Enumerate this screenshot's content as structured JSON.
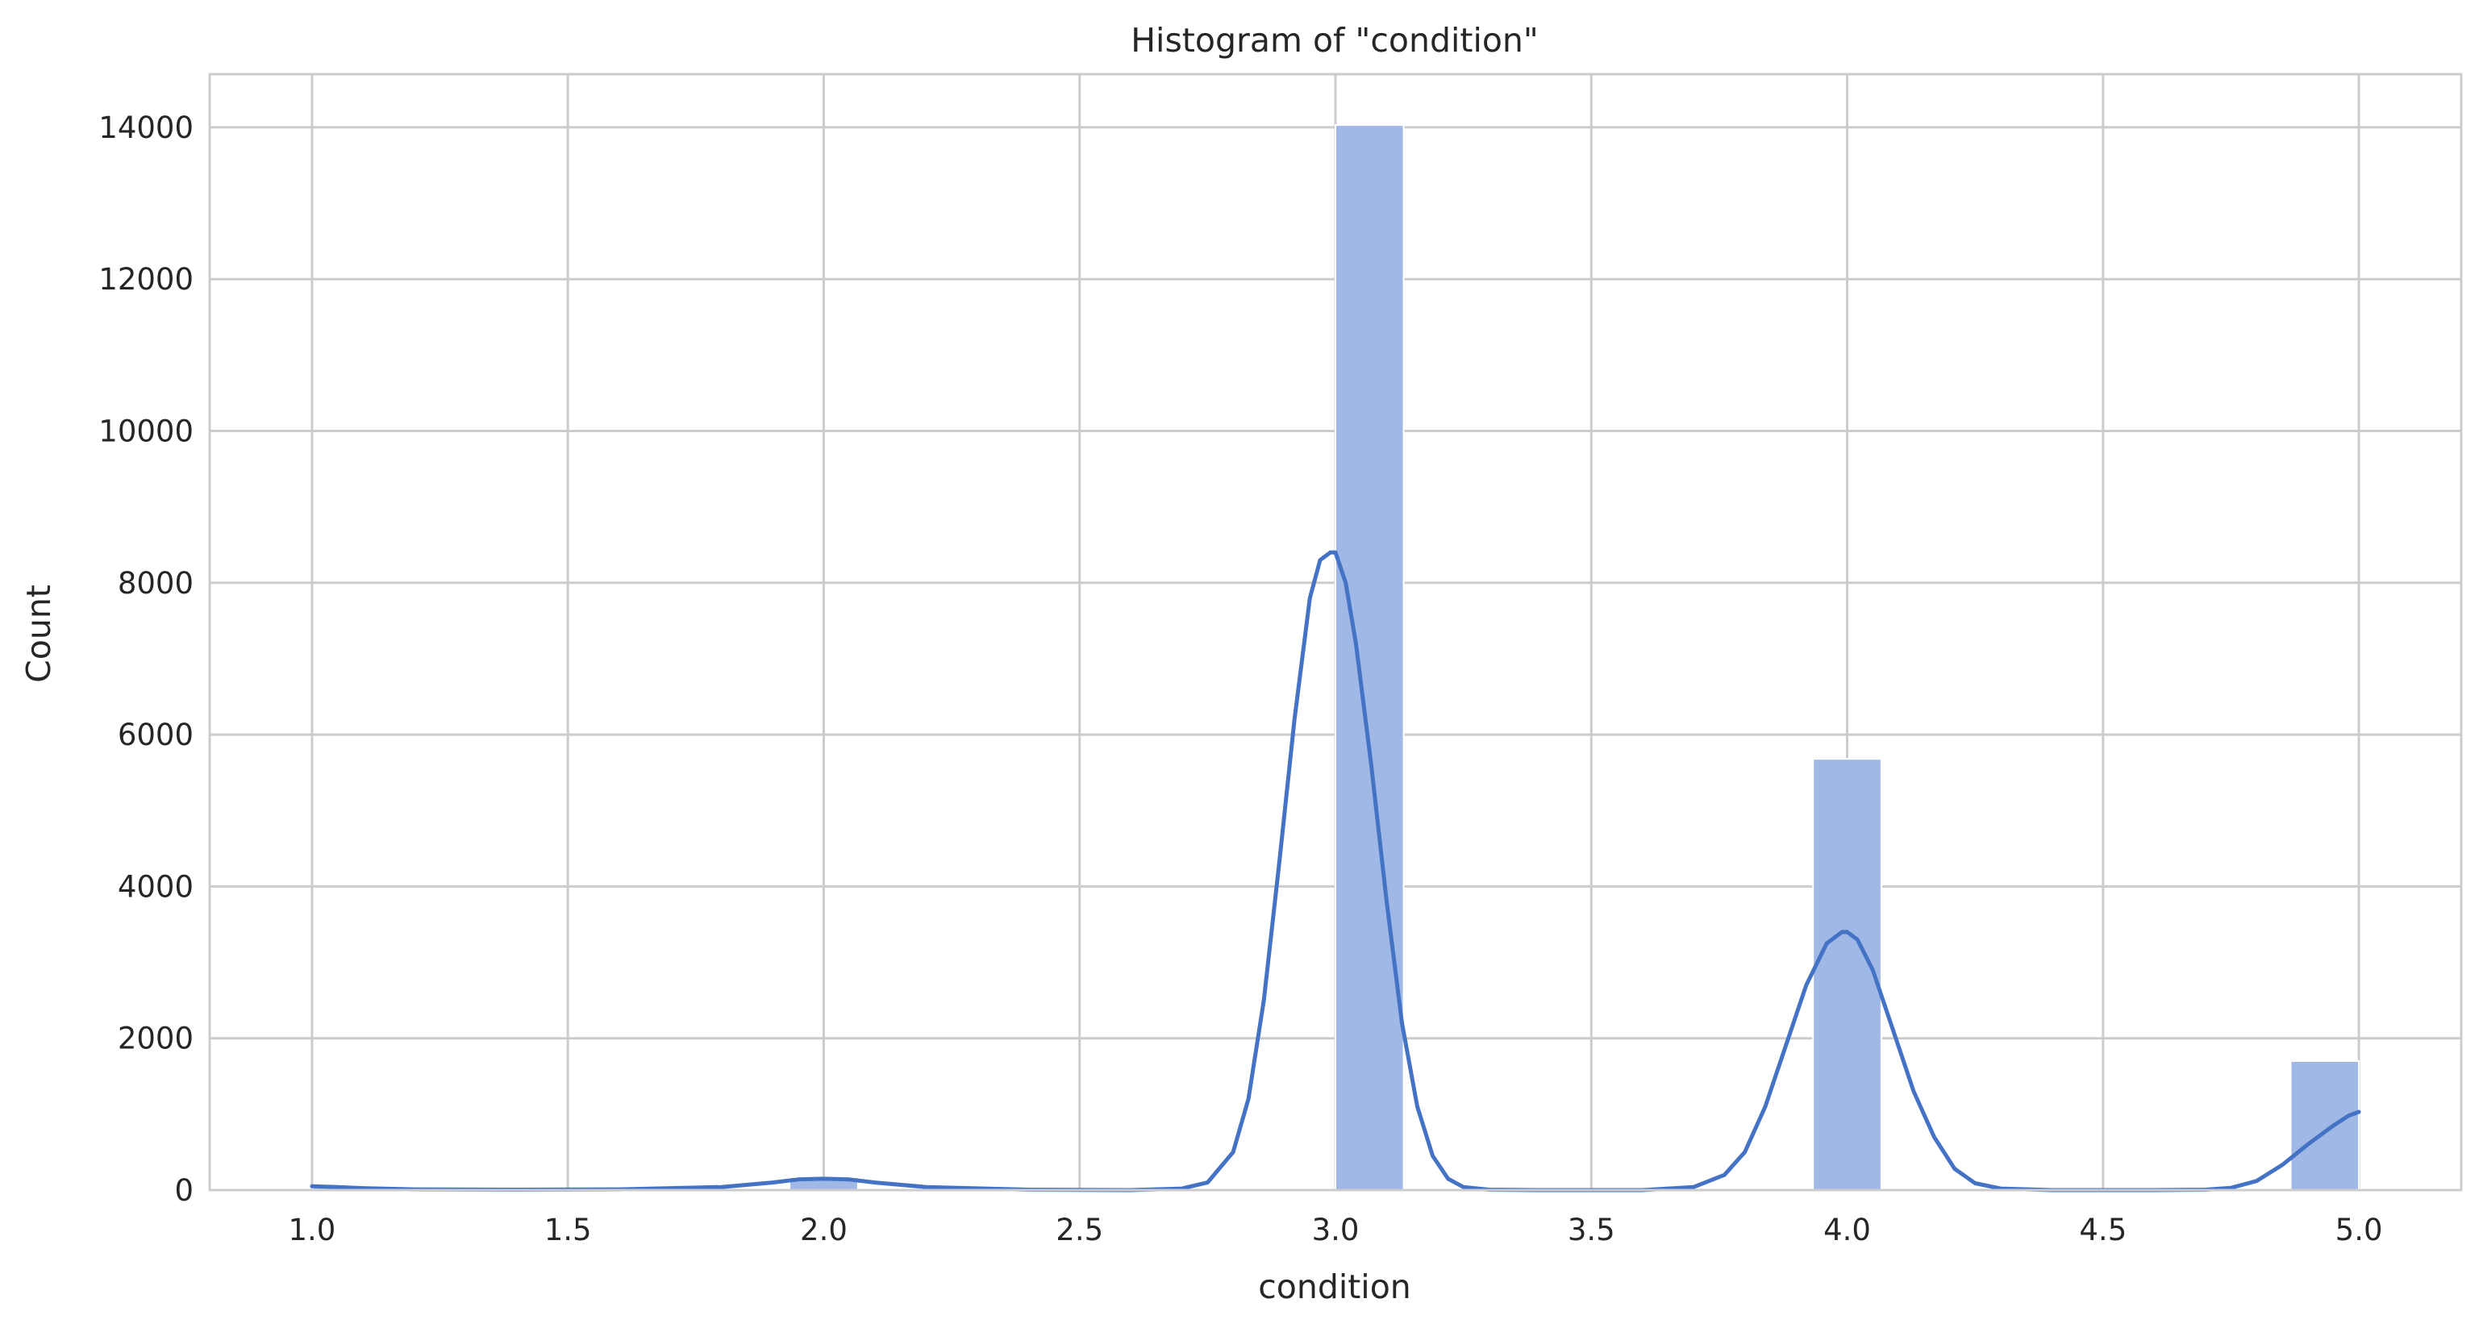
{
  "chart_data": {
    "type": "bar",
    "title": "Histogram of \"condition\"",
    "xlabel": "condition",
    "ylabel": "Count",
    "xlim": [
      0.8,
      5.2
    ],
    "ylim": [
      0,
      14700
    ],
    "xticks": [
      "1.0",
      "1.5",
      "2.0",
      "2.5",
      "3.0",
      "3.5",
      "4.0",
      "4.5",
      "5.0"
    ],
    "yticks": [
      "0",
      "2000",
      "4000",
      "6000",
      "8000",
      "10000",
      "12000",
      "14000"
    ],
    "grid": true,
    "bin_width": 0.1333,
    "bins": [
      {
        "x0": 1.0,
        "x1": 1.1333,
        "count": 30
      },
      {
        "x0": 1.9333,
        "x1": 2.0667,
        "count": 170
      },
      {
        "x0": 3.0,
        "x1": 3.1333,
        "count": 14030
      },
      {
        "x0": 3.9333,
        "x1": 4.0667,
        "count": 5680
      },
      {
        "x0": 4.8667,
        "x1": 5.0,
        "count": 1700
      }
    ],
    "kde": {
      "x": [
        1.0,
        1.05,
        1.1,
        1.2,
        1.4,
        1.6,
        1.8,
        1.9,
        1.95,
        2.0,
        2.05,
        2.1,
        2.2,
        2.4,
        2.6,
        2.7,
        2.75,
        2.8,
        2.83,
        2.86,
        2.89,
        2.92,
        2.95,
        2.97,
        2.99,
        3.0,
        3.02,
        3.04,
        3.07,
        3.1,
        3.13,
        3.16,
        3.19,
        3.22,
        3.25,
        3.3,
        3.4,
        3.6,
        3.7,
        3.76,
        3.8,
        3.84,
        3.88,
        3.92,
        3.96,
        3.99,
        4.0,
        4.02,
        4.05,
        4.09,
        4.13,
        4.17,
        4.21,
        4.25,
        4.3,
        4.4,
        4.6,
        4.7,
        4.75,
        4.8,
        4.85,
        4.9,
        4.95,
        4.98,
        5.0
      ],
      "y": [
        50,
        40,
        25,
        10,
        5,
        10,
        40,
        100,
        140,
        150,
        140,
        100,
        40,
        5,
        0,
        20,
        100,
        500,
        1200,
        2500,
        4300,
        6200,
        7800,
        8300,
        8400,
        8400,
        8000,
        7200,
        5600,
        3800,
        2200,
        1100,
        450,
        150,
        40,
        5,
        0,
        0,
        40,
        200,
        500,
        1100,
        1900,
        2700,
        3250,
        3400,
        3400,
        3300,
        2900,
        2100,
        1300,
        700,
        280,
        90,
        20,
        0,
        0,
        5,
        30,
        120,
        330,
        600,
        850,
        980,
        1030
      ]
    },
    "colors": {
      "bar_fill": "#a0b8e6",
      "kde_line": "#4472c4",
      "grid": "#cccccc",
      "frame": "#cccccc"
    }
  }
}
